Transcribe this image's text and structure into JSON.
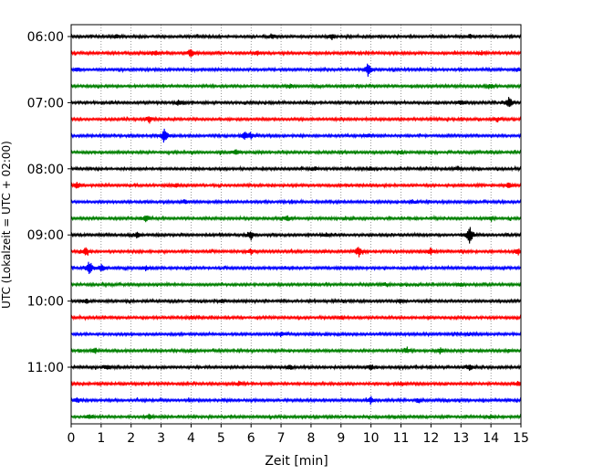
{
  "chart_data": {
    "type": "line",
    "title": "",
    "xlabel": "Zeit  [min]",
    "ylabel": "UTC (Lokalzeit = UTC + 02:00)",
    "xlim": [
      0,
      15
    ],
    "x_ticks": [
      "0",
      "1",
      "2",
      "3",
      "4",
      "5",
      "6",
      "7",
      "8",
      "9",
      "10",
      "11",
      "12",
      "13",
      "14",
      "15"
    ],
    "y_tick_labels": [
      "06:00",
      "07:00",
      "08:00",
      "09:00",
      "10:00",
      "11:00"
    ],
    "row_interval_minutes": 15,
    "grid": "vertical-dotted",
    "colors": [
      "#000000",
      "#ff0000",
      "#0000ff",
      "#008000"
    ],
    "series": [
      {
        "start": "06:00",
        "color": "#000000"
      },
      {
        "start": "06:15",
        "color": "#ff0000"
      },
      {
        "start": "06:30",
        "color": "#0000ff"
      },
      {
        "start": "06:45",
        "color": "#008000"
      },
      {
        "start": "07:00",
        "color": "#000000"
      },
      {
        "start": "07:15",
        "color": "#ff0000"
      },
      {
        "start": "07:30",
        "color": "#0000ff"
      },
      {
        "start": "07:45",
        "color": "#008000"
      },
      {
        "start": "08:00",
        "color": "#000000"
      },
      {
        "start": "08:15",
        "color": "#ff0000"
      },
      {
        "start": "08:30",
        "color": "#0000ff"
      },
      {
        "start": "08:45",
        "color": "#008000"
      },
      {
        "start": "09:00",
        "color": "#000000"
      },
      {
        "start": "09:15",
        "color": "#ff0000"
      },
      {
        "start": "09:30",
        "color": "#0000ff"
      },
      {
        "start": "09:45",
        "color": "#008000"
      },
      {
        "start": "10:00",
        "color": "#000000"
      },
      {
        "start": "10:15",
        "color": "#ff0000"
      },
      {
        "start": "10:30",
        "color": "#0000ff"
      },
      {
        "start": "10:45",
        "color": "#008000"
      },
      {
        "start": "11:00",
        "color": "#000000"
      },
      {
        "start": "11:15",
        "color": "#ff0000"
      },
      {
        "start": "11:30",
        "color": "#0000ff"
      },
      {
        "start": "11:45",
        "color": "#008000"
      }
    ]
  }
}
